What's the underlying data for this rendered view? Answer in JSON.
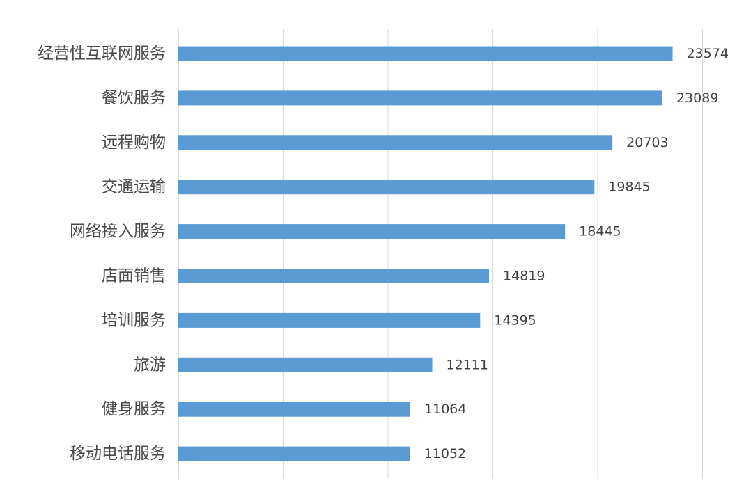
{
  "chart_data": {
    "type": "bar",
    "orientation": "horizontal",
    "categories": [
      "经营性互联网服务",
      "餐饮服务",
      "远程购物",
      "交通运输",
      "网络接入服务",
      "店面销售",
      "培训服务",
      "旅游",
      "健身服务",
      "移动电话服务"
    ],
    "values": [
      23574,
      23089,
      20703,
      19845,
      18445,
      14819,
      14395,
      12111,
      11064,
      11052
    ],
    "data_labels": [
      "23574",
      "23089",
      "20703",
      "19845",
      "18445",
      "14819",
      "14395",
      "12111",
      "11064",
      "11052"
    ],
    "title": "",
    "xlabel": "",
    "ylabel": "",
    "xlim": [
      0,
      25000
    ],
    "grid": "vertical",
    "legend": "none",
    "bar_color": "#5b9bd5",
    "grid_color": "#d9d9d9"
  }
}
